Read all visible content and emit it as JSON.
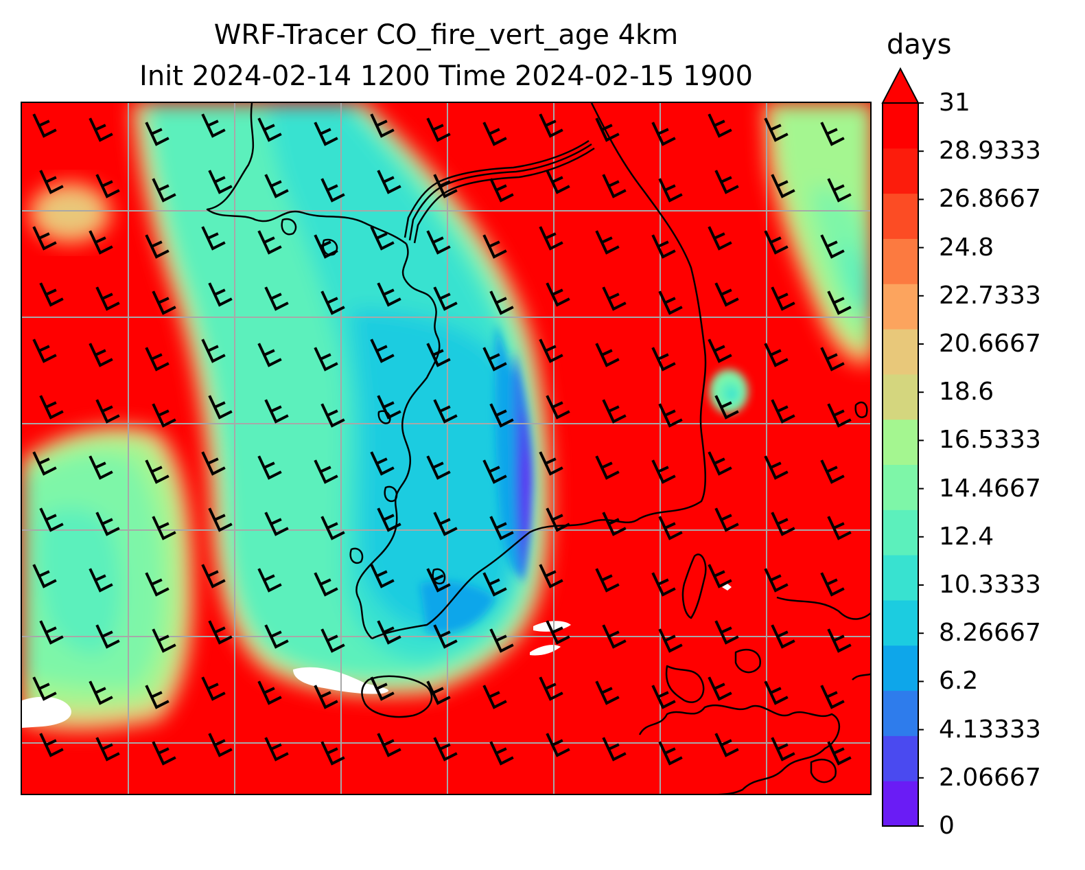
{
  "title": {
    "line1": "WRF-Tracer CO_fire_vert_age 4km",
    "line2": "Init 2024-02-14 1200 Time 2024-02-15 1900"
  },
  "colorbar": {
    "unit": "days",
    "extend": "max",
    "min": 0,
    "max": 31,
    "ticks": [
      "0",
      "2.06667",
      "4.13333",
      "6.2",
      "8.26667",
      "10.3333",
      "12.4",
      "14.4667",
      "16.5333",
      "18.6",
      "20.6667",
      "22.7333",
      "24.8",
      "26.8667",
      "28.9333",
      "31"
    ],
    "colors": [
      "#6a1cf5",
      "#4a4af0",
      "#2e7cec",
      "#0ea6ea",
      "#1ccce0",
      "#38e2d0",
      "#5cf0bc",
      "#7ef6a8",
      "#a4f690",
      "#d4d67e",
      "#e8c87a",
      "#fca45e",
      "#fc7a40",
      "#fc4c24",
      "#fc1c0c",
      "#ff0000"
    ],
    "extend_color": "#ff0000"
  },
  "map": {
    "field": "CO_fire_vert_age",
    "background_color": "#ff0000",
    "gridline_color": "#a8a8a8",
    "coastline_color": "#000000",
    "overlay": "wind barbs"
  }
}
